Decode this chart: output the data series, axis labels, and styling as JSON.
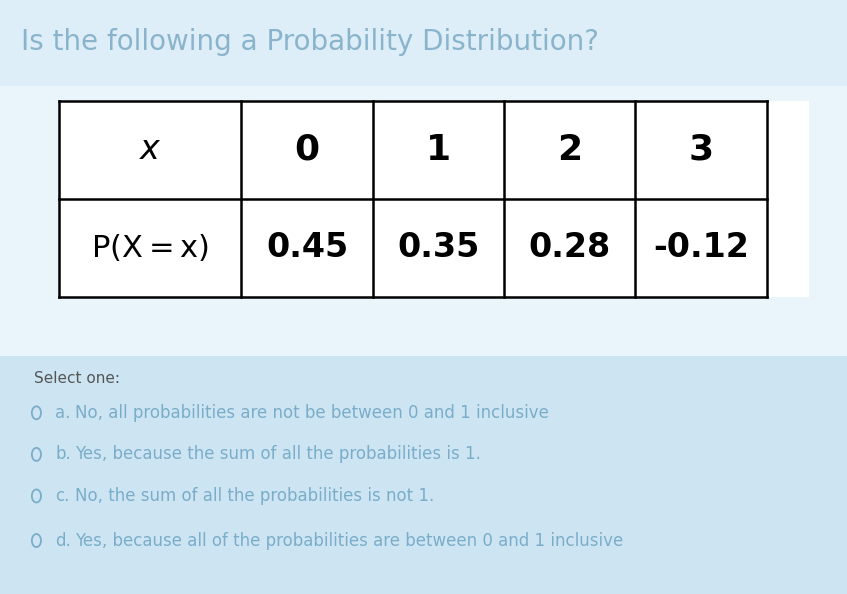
{
  "title": "Is the following a Probability Distribution?",
  "title_color": "#8ab4cc",
  "bg_color": "#daeef8",
  "table_panel_color": "#eef7fb",
  "options_panel_color": "#cde5f2",
  "table_white": "#ffffff",
  "row1": [
    "x",
    "0",
    "1",
    "2",
    "3"
  ],
  "row2": [
    "P(X=x)",
    "0.45",
    "0.35",
    "0.28",
    "-0.12"
  ],
  "select_one_text": "Select one:",
  "options": [
    [
      "a.",
      "No, all probabilities are not be between 0 and 1 inclusive"
    ],
    [
      "b.",
      "Yes, because the sum of all the probabilities is 1."
    ],
    [
      "c.",
      "No, the sum of all the probabilities is not 1."
    ],
    [
      "d.",
      "Yes, because all of the probabilities are between 0 and 1 inclusive"
    ]
  ],
  "option_color": "#7aadca",
  "select_color": "#555555",
  "title_fontsize": 20,
  "option_fontsize": 12,
  "select_fontsize": 11
}
